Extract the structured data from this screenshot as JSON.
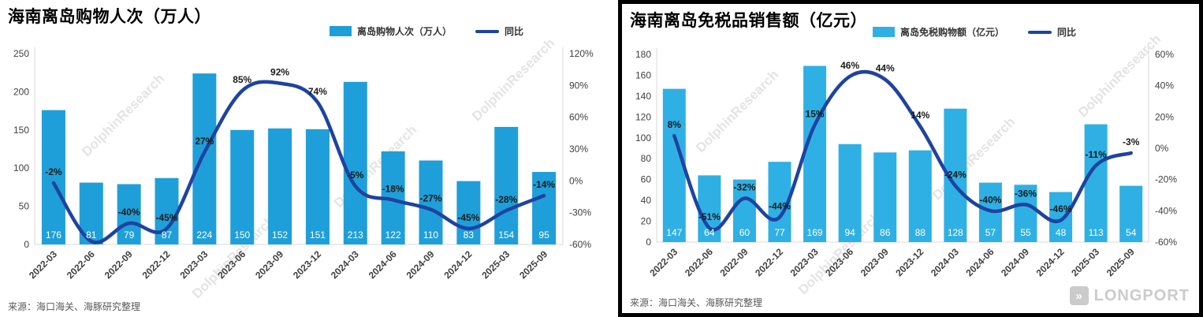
{
  "watermark": "DolphinResearch",
  "brand": {
    "name": "LONGPORT"
  },
  "chart_data": [
    {
      "type": "bar",
      "title": "海南离岛购物人次（万人）",
      "legend": {
        "bar": "离岛购物人次（万人）",
        "line": "同比"
      },
      "source": "来源：海口海关、海豚研究整理",
      "categories": [
        "2022-03",
        "2022-06",
        "2022-09",
        "2022-12",
        "2023-03",
        "2023-06",
        "2023-09",
        "2023-12",
        "2024-03",
        "2024-06",
        "2024-09",
        "2024-12",
        "2025-03",
        "2025-09"
      ],
      "bar_series": {
        "name": "离岛购物人次（万人）",
        "values": [
          176,
          81,
          79,
          87,
          224,
          150,
          152,
          151,
          213,
          122,
          110,
          83,
          154,
          95
        ]
      },
      "line_series": {
        "name": "同比",
        "values_pct": [
          -2,
          -57,
          -40,
          -45,
          27,
          85,
          92,
          74,
          -5,
          -18,
          -27,
          -45,
          -28,
          -14
        ],
        "labels": [
          "-2%",
          "",
          "-40%",
          "-45%",
          "27%",
          "85%",
          "92%",
          "74%",
          "-5%",
          "-18%",
          "-27%",
          "-45%",
          "-28%",
          "-14%"
        ]
      },
      "left_axis": {
        "min": 0,
        "max": 250,
        "step": 50
      },
      "right_axis": {
        "min": -60,
        "max": 120,
        "step": 30,
        "suffix": "%"
      },
      "bar_color": "#1f9fd9",
      "line_color": "#1e43a0",
      "legend_position": "top",
      "grid": false
    },
    {
      "type": "bar",
      "title": "海南离岛免税品销售额（亿元）",
      "legend": {
        "bar": "离岛免税购物额（亿元）",
        "line": "同比"
      },
      "source": "来源：海口海关、海豚研究整理",
      "categories": [
        "2022-03",
        "2022-06",
        "2022-09",
        "2022-12",
        "2023-03",
        "2023-06",
        "2023-09",
        "2023-12",
        "2024-03",
        "2024-06",
        "2024-09",
        "2024-12",
        "2025-03",
        "2025-09"
      ],
      "bar_series": {
        "name": "离岛免税购物额（亿元）",
        "values": [
          147,
          64,
          60,
          77,
          169,
          94,
          86,
          88,
          128,
          57,
          55,
          48,
          113,
          54
        ]
      },
      "line_series": {
        "name": "同比",
        "values_pct": [
          8,
          -51,
          -32,
          -44,
          15,
          46,
          44,
          14,
          -24,
          -40,
          -36,
          -46,
          -11,
          -3
        ],
        "labels": [
          "8%",
          "-51%",
          "-32%",
          "-44%",
          "15%",
          "46%",
          "44%",
          "14%",
          "-24%",
          "-40%",
          "-36%",
          "-46%",
          "-11%",
          "-3%"
        ]
      },
      "left_axis": {
        "min": 0,
        "max": 180,
        "step": 20
      },
      "right_axis": {
        "min": -60,
        "max": 60,
        "step": 20,
        "suffix": "%"
      },
      "bar_color": "#2fb0e5",
      "line_color": "#1e43a0",
      "legend_position": "top",
      "grid": false
    }
  ]
}
